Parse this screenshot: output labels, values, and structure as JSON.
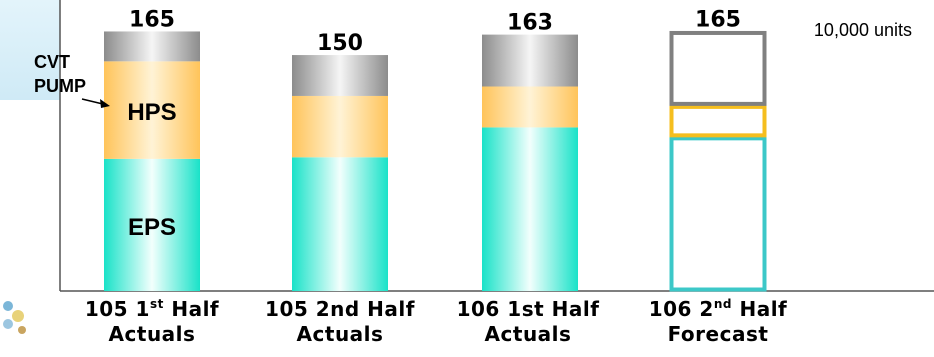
{
  "chart_data": {
    "type": "bar",
    "stacked": true,
    "unit": "10,000 units",
    "categories": [
      {
        "prefix": "105 1",
        "sup": "st",
        "suffix": " Half",
        "line2": "Actuals",
        "forecast": false
      },
      {
        "prefix": "105 2nd Half",
        "sup": "",
        "suffix": "",
        "line2": "Actuals",
        "forecast": false
      },
      {
        "prefix": "106 1st Half",
        "sup": "",
        "suffix": "",
        "line2": "Actuals",
        "forecast": false
      },
      {
        "prefix": "106 2",
        "sup": "nd",
        "suffix": " Half",
        "line2": "Forecast",
        "forecast": true
      }
    ],
    "series": [
      {
        "name": "EPS",
        "color": "#19e2c8",
        "outline": "#3cc8c8",
        "values": [
          84,
          85,
          104,
          98
        ]
      },
      {
        "name": "HPS",
        "color": "#ffc45a",
        "outline": "#f5be1e",
        "values": [
          62,
          39,
          26,
          20
        ]
      },
      {
        "name": "CVT PUMP",
        "label_line1": "CVT",
        "label_line2": "PUMP",
        "color": "#9a9a9a",
        "outline": "#808080",
        "values": [
          19,
          26,
          33,
          47
        ]
      }
    ],
    "totals": [
      "165",
      "150",
      "163",
      "165"
    ],
    "ylim": [
      0,
      185
    ]
  }
}
